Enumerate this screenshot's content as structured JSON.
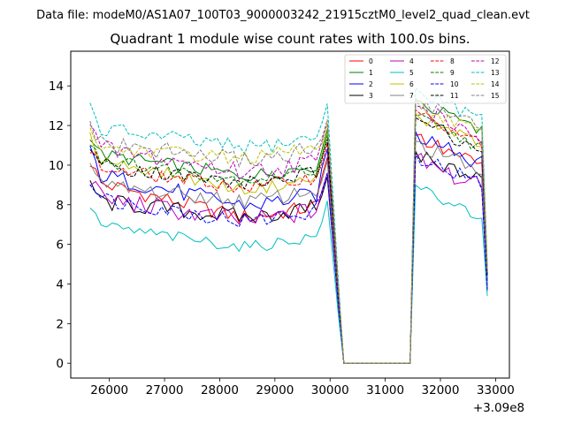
{
  "suptitle": "Data file: modeM0/AS1A07_100T03_9000003242_21915cztM0_level2_quad_clean.evt",
  "chart_data": {
    "type": "line",
    "title": "Quadrant 1 module wise count rates with 100.0s bins.",
    "xlabel": "",
    "ylabel": "",
    "x_offset_label": "+3.09e8",
    "xlim": [
      25300,
      33250
    ],
    "ylim": [
      -0.75,
      15.75
    ],
    "xticks": [
      26000,
      27000,
      28000,
      29000,
      30000,
      31000,
      32000,
      33000
    ],
    "xtick_labels": [
      "26000",
      "27000",
      "28000",
      "29000",
      "30000",
      "31000",
      "32000",
      "33000"
    ],
    "yticks": [
      0,
      2,
      4,
      6,
      8,
      10,
      12,
      14
    ],
    "ytick_labels": [
      "0",
      "2",
      "4",
      "6",
      "8",
      "10",
      "12",
      "14"
    ],
    "grid": false,
    "legend_position": "top-right",
    "x_segments": {
      "active1": {
        "start": 25650,
        "step": 100,
        "count": 44
      },
      "gap": [
        30150,
        30250,
        30350,
        31450
      ],
      "active2": {
        "start": 31550,
        "step": 100,
        "count": 14
      }
    },
    "series": [
      {
        "name": "0",
        "color": "#ff0000",
        "dash": "solid",
        "level1": 9.2,
        "drop1": 1.8,
        "level2": 10.2,
        "amp": 0.4
      },
      {
        "name": "1",
        "color": "#008000",
        "dash": "solid",
        "level1": 10.6,
        "drop1": 1.1,
        "level2": 12.0,
        "amp": 0.35
      },
      {
        "name": "2",
        "color": "#0000ff",
        "dash": "solid",
        "level1": 9.6,
        "drop1": 1.6,
        "level2": 10.4,
        "amp": 0.45
      },
      {
        "name": "3",
        "color": "#000000",
        "dash": "solid",
        "level1": 8.2,
        "drop1": 0.8,
        "level2": 9.4,
        "amp": 0.45
      },
      {
        "name": "4",
        "color": "#bf00bf",
        "dash": "solid",
        "level1": 8.4,
        "drop1": 1.2,
        "level2": 9.1,
        "amp": 0.5
      },
      {
        "name": "5",
        "color": "#00bfbf",
        "dash": "solid",
        "level1": 7.0,
        "drop1": 1.1,
        "level2": 7.7,
        "amp": 0.3
      },
      {
        "name": "6",
        "color": "#bfbf00",
        "dash": "solid",
        "level1": 10.4,
        "drop1": 1.6,
        "level2": 11.3,
        "amp": 0.3
      },
      {
        "name": "7",
        "color": "#808080",
        "dash": "solid",
        "level1": 9.0,
        "drop1": 0.8,
        "level2": 9.9,
        "amp": 0.4
      },
      {
        "name": "8",
        "color": "#ff0000",
        "dash": "dashed",
        "level1": 9.9,
        "drop1": 1.0,
        "level2": 11.5,
        "amp": 0.35
      },
      {
        "name": "9",
        "color": "#008000",
        "dash": "dashed",
        "level1": 10.3,
        "drop1": 1.0,
        "level2": 11.2,
        "amp": 0.35
      },
      {
        "name": "10",
        "color": "#0000ff",
        "dash": "dashed",
        "level1": 8.4,
        "drop1": 1.2,
        "level2": 9.3,
        "amp": 0.4
      },
      {
        "name": "11",
        "color": "#000000",
        "dash": "dashed",
        "level1": 10.1,
        "drop1": 1.0,
        "level2": 11.1,
        "amp": 0.4
      },
      {
        "name": "12",
        "color": "#bf00bf",
        "dash": "dashed",
        "level1": 10.9,
        "drop1": 1.2,
        "level2": 11.7,
        "amp": 0.5
      },
      {
        "name": "13",
        "color": "#00bfbf",
        "dash": "dashed",
        "level1": 11.9,
        "drop1": 1.0,
        "level2": 12.6,
        "amp": 0.4
      },
      {
        "name": "14",
        "color": "#bfbf00",
        "dash": "dashed",
        "level1": 10.9,
        "drop1": 0.5,
        "level2": 11.9,
        "amp": 0.35
      },
      {
        "name": "15",
        "color": "#808080",
        "dash": "dashed",
        "level1": 11.1,
        "drop1": 0.8,
        "level2": 12.1,
        "amp": 0.45
      }
    ]
  }
}
